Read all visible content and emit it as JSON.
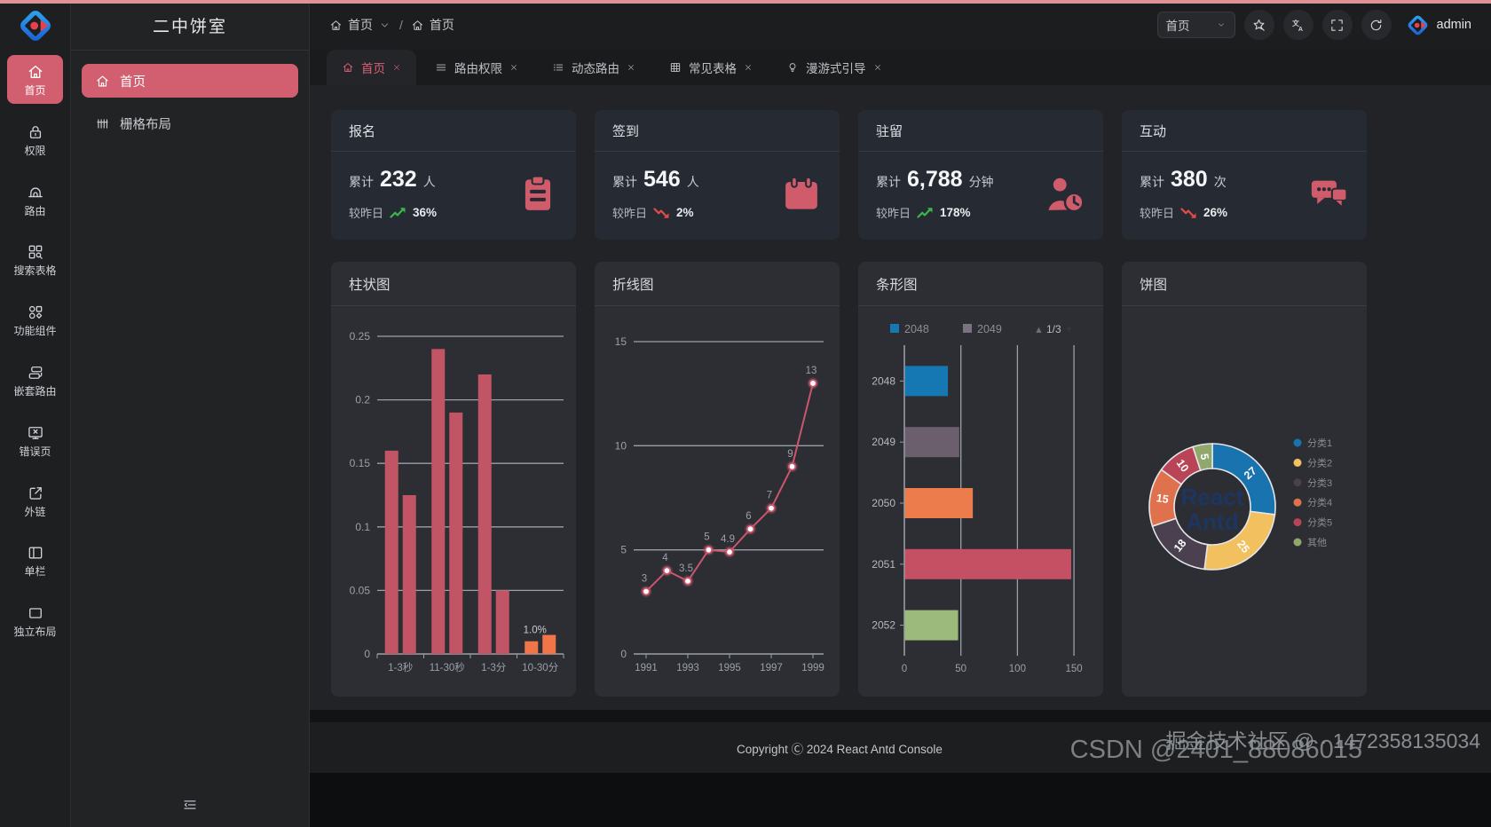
{
  "app": {
    "accent": "#d25f70"
  },
  "rail": {
    "items": [
      {
        "label": "首页",
        "icon": "home",
        "active": true
      },
      {
        "label": "权限",
        "icon": "lock",
        "active": false
      },
      {
        "label": "路由",
        "icon": "bridge",
        "active": false
      },
      {
        "label": "搜索表格",
        "icon": "search-table",
        "active": false
      },
      {
        "label": "功能组件",
        "icon": "components",
        "active": false
      },
      {
        "label": "嵌套路由",
        "icon": "nested",
        "active": false
      },
      {
        "label": "错误页",
        "icon": "error-page",
        "active": false
      },
      {
        "label": "外链",
        "icon": "external-link",
        "active": false
      },
      {
        "label": "单栏",
        "icon": "single-column",
        "active": false
      },
      {
        "label": "独立布局",
        "icon": "standalone",
        "active": false
      }
    ]
  },
  "submenu": {
    "title": "二中饼室",
    "items": [
      {
        "label": "首页",
        "icon": "home",
        "active": true
      },
      {
        "label": "栅格布局",
        "icon": "grid",
        "active": false
      }
    ]
  },
  "breadcrumb": {
    "separator": "/",
    "items": [
      {
        "label": "首页",
        "icon": "home",
        "dropdown": true
      },
      {
        "label": "首页",
        "icon": "home",
        "dropdown": false
      }
    ]
  },
  "header": {
    "page_select": "首页",
    "icon_buttons": [
      "theme",
      "translate",
      "fullscreen",
      "reload"
    ],
    "user": "admin"
  },
  "tabs": [
    {
      "label": "首页",
      "icon": "home",
      "active": true
    },
    {
      "label": "路由权限",
      "icon": "menu",
      "active": false
    },
    {
      "label": "动态路由",
      "icon": "list",
      "active": false
    },
    {
      "label": "常见表格",
      "icon": "table",
      "active": false
    },
    {
      "label": "漫游式引导",
      "icon": "bulb",
      "active": false
    }
  ],
  "stat_cards": [
    {
      "title": "报名",
      "prefix": "累计",
      "value": "232",
      "unit": "人",
      "compare_label": "较昨日",
      "trend": "up",
      "percent": "36%",
      "icon": "clipboard"
    },
    {
      "title": "签到",
      "prefix": "累计",
      "value": "546",
      "unit": "人",
      "compare_label": "较昨日",
      "trend": "down",
      "percent": "2%",
      "icon": "calendar"
    },
    {
      "title": "驻留",
      "prefix": "累计",
      "value": "6,788",
      "unit": "分钟",
      "compare_label": "较昨日",
      "trend": "up",
      "percent": "178%",
      "icon": "user-clock"
    },
    {
      "title": "互动",
      "prefix": "累计",
      "value": "380",
      "unit": "次",
      "compare_label": "较昨日",
      "trend": "down",
      "percent": "26%",
      "icon": "chat"
    }
  ],
  "trend_colors": {
    "up": "#3cb54a",
    "down": "#e14b4b"
  },
  "chart_data": [
    {
      "type": "bar",
      "title": "柱状图",
      "ylim": [
        0,
        0.25
      ],
      "y_ticks": [
        0,
        0.05,
        0.1,
        0.15,
        0.2,
        0.25
      ],
      "group_labels": [
        "1-3秒",
        "11-30秒",
        "1-3分",
        "10-30分"
      ],
      "bars": [
        {
          "value": 0.16,
          "color": "#c25565"
        },
        {
          "value": 0.125,
          "color": "#c25565"
        },
        {
          "value": 0.24,
          "color": "#c25565"
        },
        {
          "value": 0.19,
          "color": "#c25565"
        },
        {
          "value": 0.22,
          "color": "#c25565"
        },
        {
          "value": 0.05,
          "color": "#c25565"
        },
        {
          "value": 0.01,
          "color": "#f0764a",
          "label": "1.0%"
        },
        {
          "value": 0.015,
          "color": "#f0764a"
        }
      ],
      "grid": true
    },
    {
      "type": "line",
      "title": "折线图",
      "x": [
        1991,
        1992,
        1993,
        1994,
        1995,
        1996,
        1997,
        1998,
        1999
      ],
      "values": [
        3,
        4,
        3.5,
        5,
        4.9,
        6,
        7,
        9,
        13
      ],
      "x_tick_labels": [
        1991,
        1993,
        1995,
        1997,
        1999
      ],
      "y_ticks": [
        0,
        5,
        10,
        15
      ],
      "ylim": [
        0,
        15
      ],
      "line_color": "#cb566d",
      "grid": true
    },
    {
      "type": "hbar",
      "title": "条形图",
      "categories": [
        "2048",
        "2049",
        "2050",
        "2051",
        "2052"
      ],
      "values": [
        38,
        48,
        60,
        147,
        47
      ],
      "colors": [
        "#1578b2",
        "#6b5f6e",
        "#ec7c4c",
        "#c54f63",
        "#9cba7b"
      ],
      "x_ticks": [
        0,
        50,
        100,
        150
      ],
      "xlim": [
        0,
        157
      ],
      "legend": [
        {
          "label": "2048",
          "color": "#1578b2"
        },
        {
          "label": "2049",
          "color": "#7a7280"
        }
      ],
      "legend_pagination": "1/3",
      "grid": true
    },
    {
      "type": "pie",
      "title": "饼图",
      "donut": true,
      "center_text": [
        "React",
        "Antd"
      ],
      "legend_position": "right",
      "slices": [
        {
          "label": "分类1",
          "value": 27,
          "color": "#1973ae"
        },
        {
          "label": "分类2",
          "value": 25,
          "color": "#f2c05e"
        },
        {
          "label": "分类3",
          "value": 18,
          "color": "#4a4050"
        },
        {
          "label": "分类4",
          "value": 15,
          "color": "#e0714d"
        },
        {
          "label": "分类5",
          "value": 10,
          "color": "#b94457"
        },
        {
          "label": "其他",
          "value": 5,
          "color": "#91a86c"
        }
      ]
    }
  ],
  "footer": {
    "copyright": "Copyright Ⓒ 2024 React Antd Console"
  },
  "watermarks": [
    "掘金技术社区 @ · 1472358135034",
    "CSDN @2401_88086015"
  ]
}
